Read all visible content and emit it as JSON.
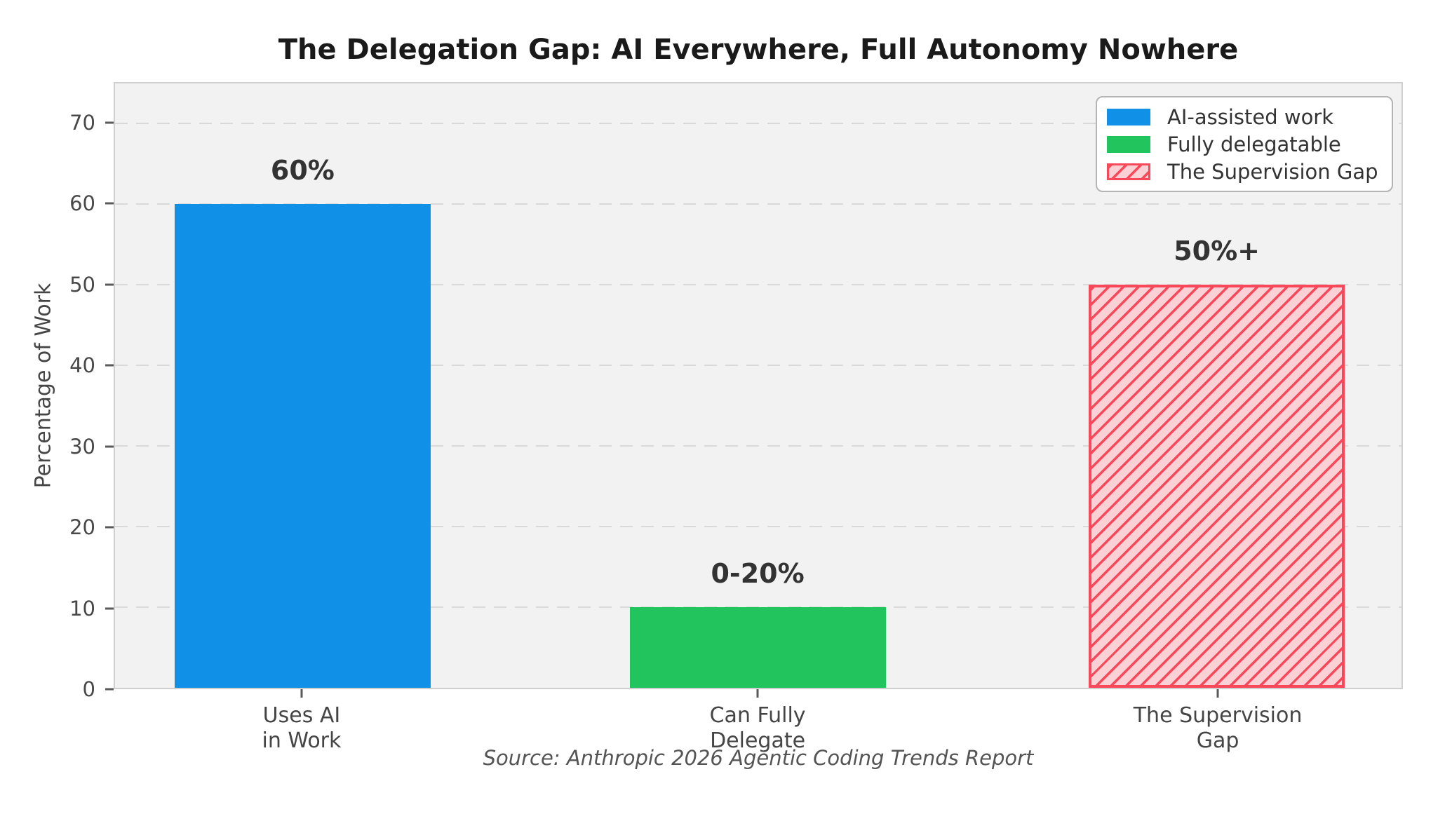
{
  "chart_data": {
    "type": "bar",
    "title": "The Delegation Gap: AI Everywhere, Full Autonomy Nowhere",
    "ylabel": "Percentage of Work",
    "source": "Source: Anthropic 2026 Agentic Coding Trends Report",
    "ylim": [
      0,
      75
    ],
    "yticks": [
      0,
      10,
      20,
      30,
      40,
      50,
      60,
      70
    ],
    "grid": "dashed-horizontal",
    "legend_position": "upper-right",
    "plot_background": "#f2f2f2",
    "categories": [
      "Uses AI\nin Work",
      "Can Fully\nDelegate",
      "The Supervision\nGap"
    ],
    "bars": [
      {
        "category": "Uses AI\nin Work",
        "value": 60,
        "value_label": "60%",
        "style": "solid",
        "color": "#1190e8"
      },
      {
        "category": "Can Fully\nDelegate",
        "value": 10,
        "value_label": "0-20%",
        "style": "solid",
        "color": "#22c45e"
      },
      {
        "category": "The Supervision\nGap",
        "value": 50,
        "value_label": "50%+",
        "style": "hatched",
        "color": "#f8485a",
        "fill": "#fcd1d6"
      }
    ],
    "legend": [
      {
        "label": "AI-assisted work",
        "swatch": "solid",
        "color": "#1190e8"
      },
      {
        "label": "Fully delegatable",
        "swatch": "solid",
        "color": "#22c45e"
      },
      {
        "label": "The Supervision Gap",
        "swatch": "hatched",
        "color": "#f8485a",
        "fill": "#fcd1d6"
      }
    ]
  }
}
